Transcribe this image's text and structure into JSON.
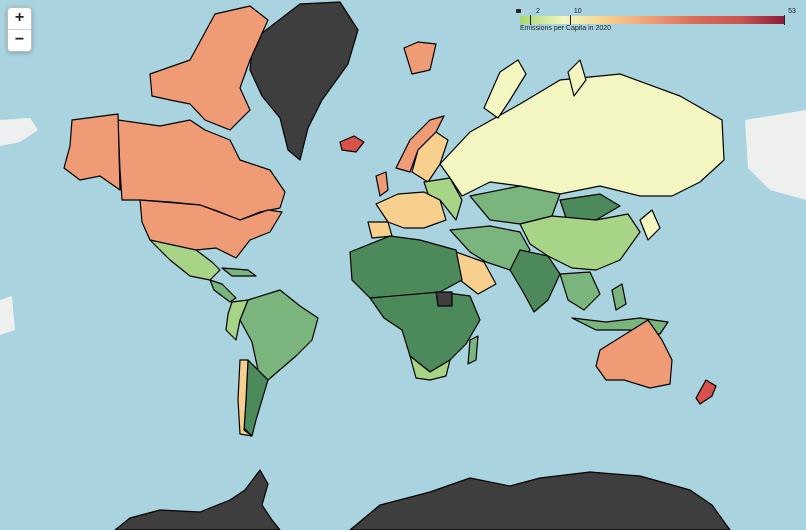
{
  "zoom": {
    "in_label": "+",
    "out_label": "−"
  },
  "legend": {
    "caption": "Emissions per Capita in 2020",
    "ticks": [
      {
        "label": "2",
        "value": 2
      },
      {
        "label": "10",
        "value": 10
      },
      {
        "label": "53",
        "value": 53
      }
    ],
    "scale_min": 0,
    "scale_max": 53,
    "colors": [
      "#a6d96a",
      "#f3f6c0",
      "#f6d08c",
      "#ef9b76",
      "#d96a55",
      "#c9574f",
      "#8e1d3a"
    ],
    "nodata_color": "#3e3e3e"
  },
  "palette": {
    "dark_green": "#4d8a5b",
    "mid_green": "#7ab57d",
    "light_green": "#a8d488",
    "pale_yellow": "#f3f6c0",
    "light_orange": "#f6d08c",
    "salmon": "#ef9b76",
    "red": "#d8514b",
    "ocean": "#a9d3df"
  }
}
